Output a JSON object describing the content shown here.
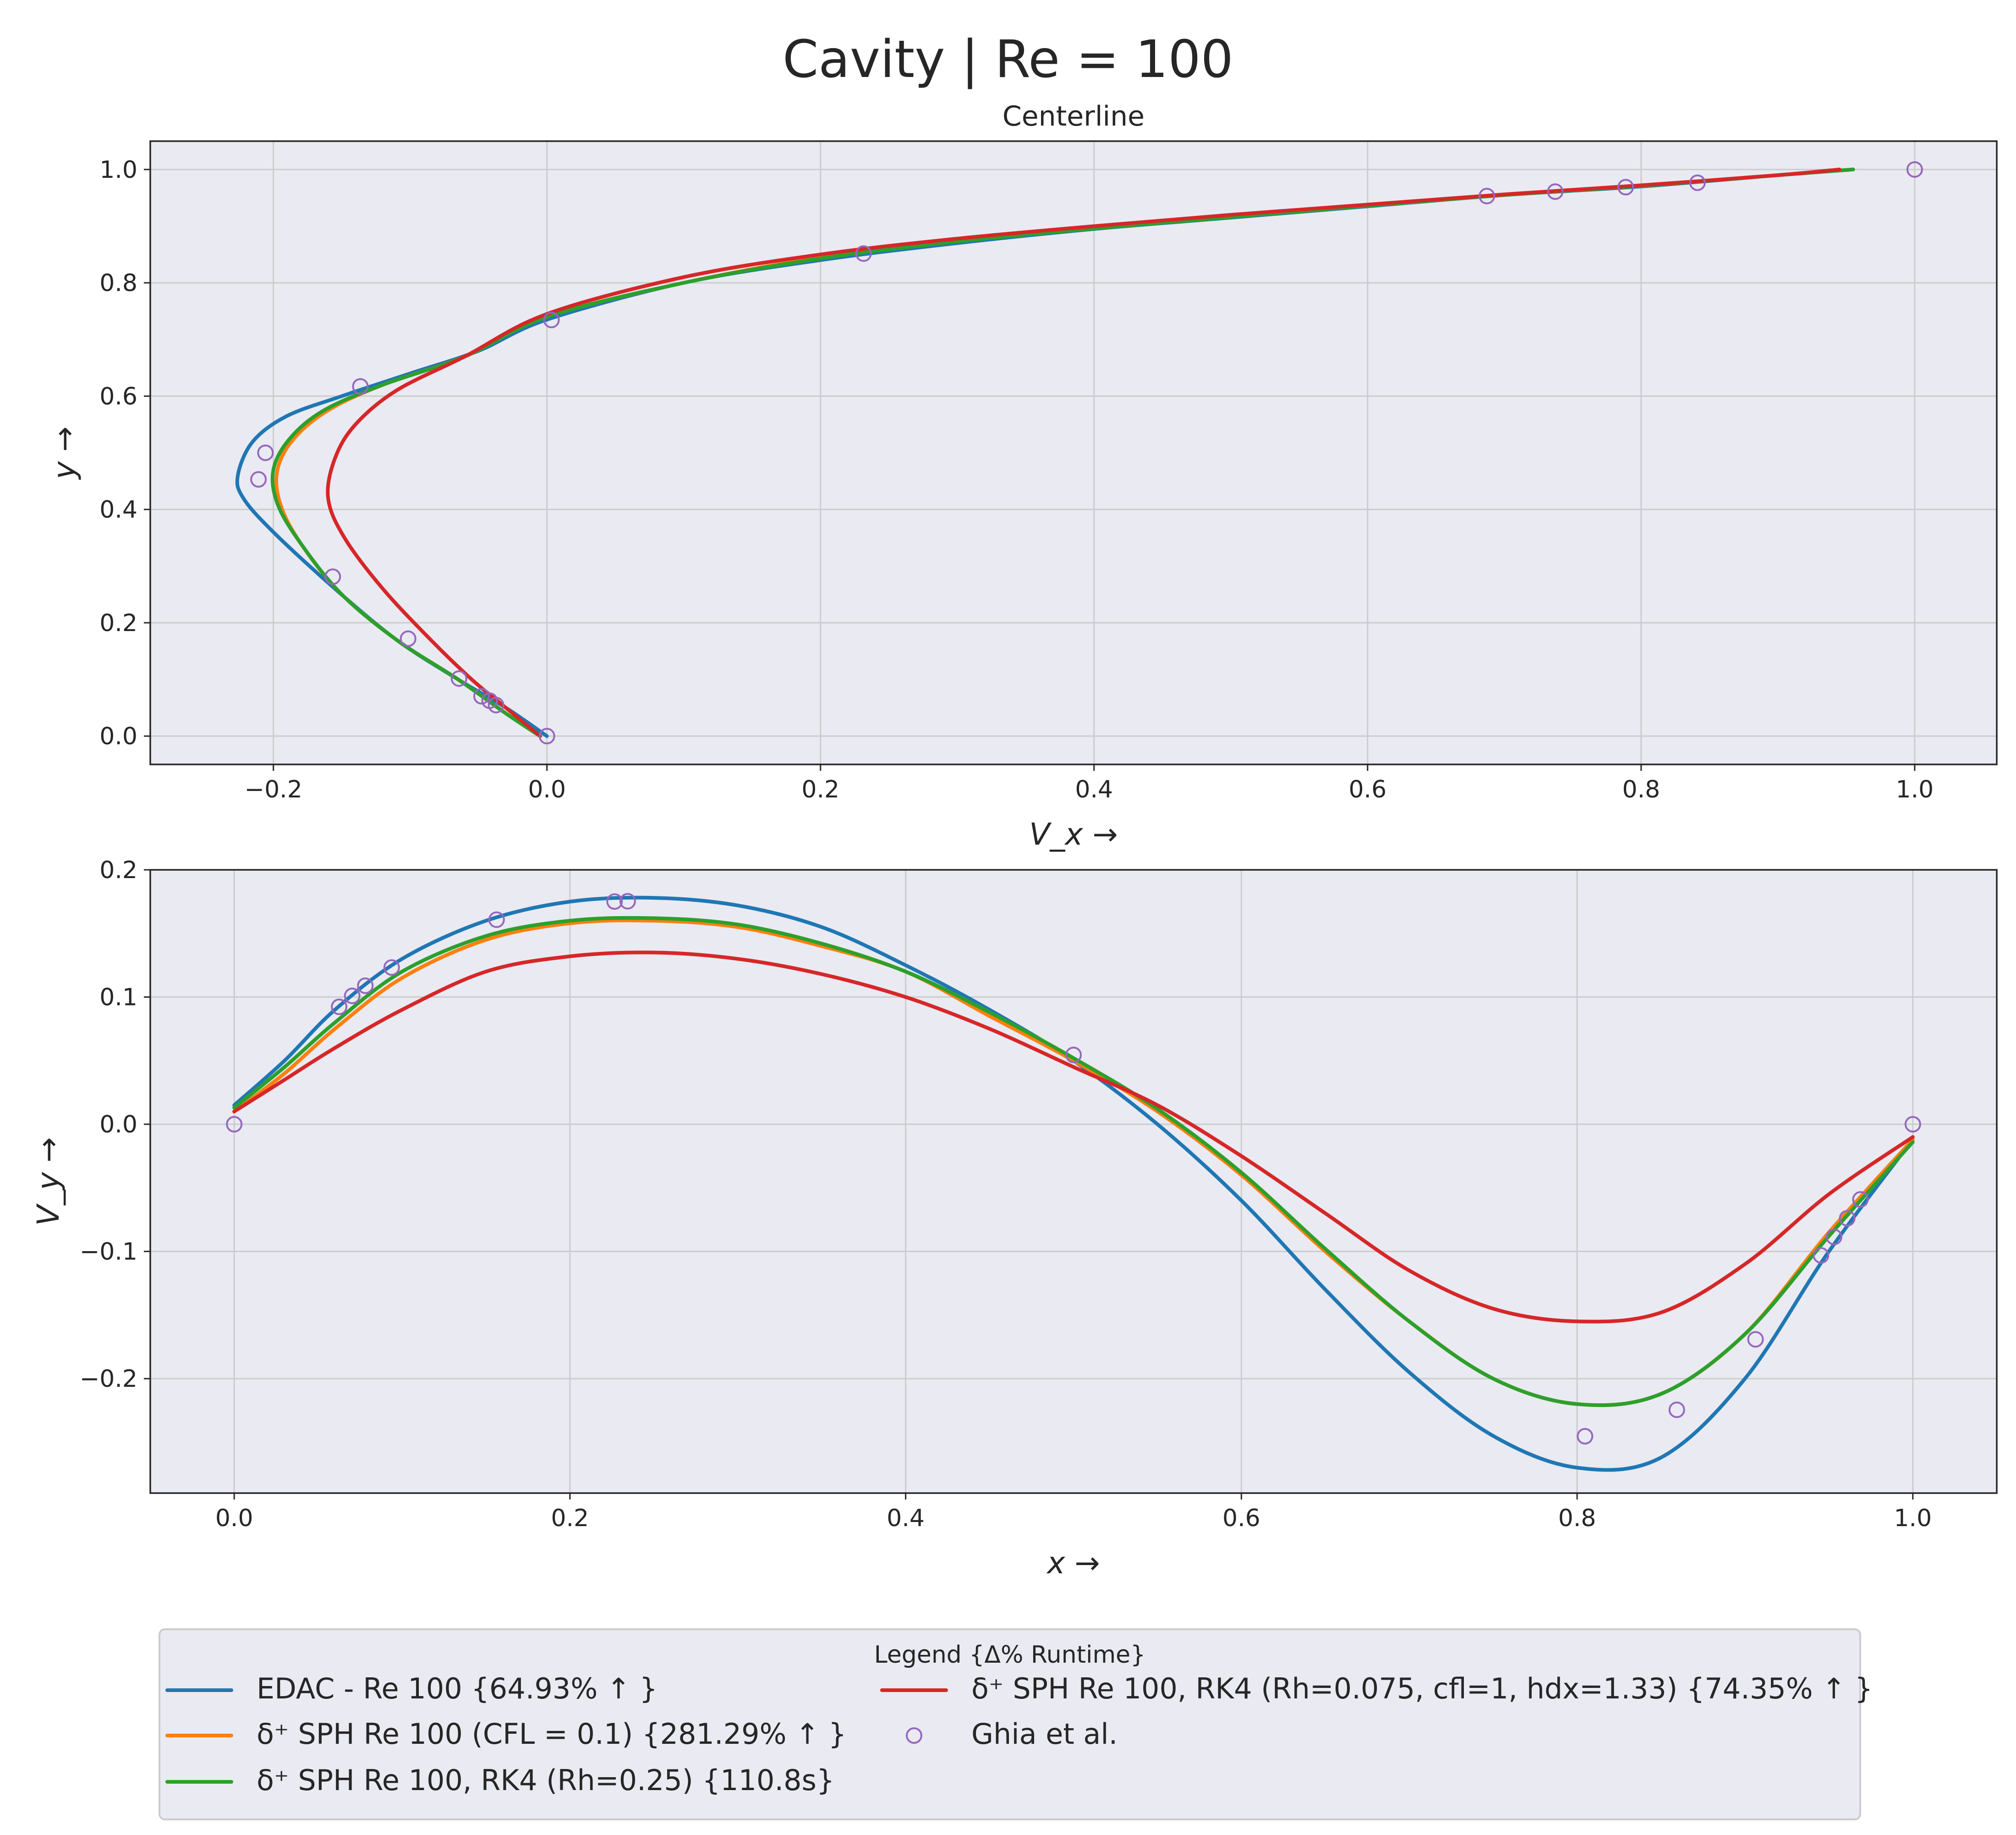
{
  "figure": {
    "title": "Cavity | Re = 100"
  },
  "legend": {
    "title": "Legend {Δ% Runtime}",
    "columns": 2,
    "placement": "bottom-center"
  },
  "colors": {
    "edac": "#1f77b4",
    "dsph_cfl": "#ff7f0e",
    "dsph_rk4": "#2ca02c",
    "dsph_rk4_rh": "#d62728",
    "ghia": "#9467bd",
    "axes_bg": "#eaeaf2",
    "grid": "#cccccc"
  },
  "chart_data": [
    {
      "type": "line",
      "title": "Centerline",
      "xlabel": "V_x →",
      "ylabel": "y →",
      "xlim": [
        -0.29,
        1.06
      ],
      "ylim": [
        -0.05,
        1.05
      ],
      "xticks": [
        -0.2,
        0.0,
        0.2,
        0.4,
        0.6,
        0.8,
        1.0
      ],
      "yticks": [
        0.0,
        0.2,
        0.4,
        0.6,
        0.8,
        1.0
      ],
      "xtick_labels": [
        "−0.2",
        "0.0",
        "0.2",
        "0.4",
        "0.6",
        "0.8",
        "1.0"
      ],
      "ytick_labels": [
        "0.0",
        "0.2",
        "0.4",
        "0.6",
        "0.8",
        "1.0"
      ],
      "grid": true,
      "series": [
        {
          "key": "edac",
          "points": [
            [
              0.0,
              0.0
            ],
            [
              -0.03,
              0.05
            ],
            [
              -0.065,
              0.1
            ],
            [
              -0.11,
              0.17
            ],
            [
              -0.155,
              0.26
            ],
            [
              -0.2,
              0.36
            ],
            [
              -0.222,
              0.42
            ],
            [
              -0.226,
              0.46
            ],
            [
              -0.215,
              0.52
            ],
            [
              -0.19,
              0.565
            ],
            [
              -0.15,
              0.6
            ],
            [
              -0.1,
              0.64
            ],
            [
              -0.05,
              0.68
            ],
            [
              0.0,
              0.735
            ],
            [
              0.1,
              0.8
            ],
            [
              0.2,
              0.84
            ],
            [
              0.3,
              0.87
            ],
            [
              0.4,
              0.895
            ],
            [
              0.5,
              0.915
            ],
            [
              0.6,
              0.935
            ],
            [
              0.7,
              0.955
            ],
            [
              0.8,
              0.97
            ],
            [
              0.9,
              0.99
            ],
            [
              0.955,
              1.0
            ]
          ]
        },
        {
          "key": "dsph_cfl",
          "points": [
            [
              -0.005,
              0.0
            ],
            [
              -0.03,
              0.04
            ],
            [
              -0.065,
              0.1
            ],
            [
              -0.11,
              0.17
            ],
            [
              -0.15,
              0.25
            ],
            [
              -0.18,
              0.34
            ],
            [
              -0.195,
              0.41
            ],
            [
              -0.197,
              0.47
            ],
            [
              -0.185,
              0.525
            ],
            [
              -0.16,
              0.575
            ],
            [
              -0.12,
              0.62
            ],
            [
              -0.06,
              0.67
            ],
            [
              0.0,
              0.74
            ],
            [
              0.1,
              0.8
            ],
            [
              0.2,
              0.845
            ],
            [
              0.3,
              0.875
            ],
            [
              0.4,
              0.898
            ],
            [
              0.5,
              0.918
            ],
            [
              0.6,
              0.938
            ],
            [
              0.7,
              0.956
            ],
            [
              0.8,
              0.972
            ],
            [
              0.9,
              0.99
            ],
            [
              0.945,
              1.0
            ]
          ]
        },
        {
          "key": "dsph_rk4",
          "points": [
            [
              -0.005,
              0.0
            ],
            [
              -0.03,
              0.04
            ],
            [
              -0.065,
              0.1
            ],
            [
              -0.11,
              0.17
            ],
            [
              -0.15,
              0.25
            ],
            [
              -0.18,
              0.34
            ],
            [
              -0.197,
              0.41
            ],
            [
              -0.2,
              0.47
            ],
            [
              -0.188,
              0.525
            ],
            [
              -0.163,
              0.575
            ],
            [
              -0.12,
              0.62
            ],
            [
              -0.06,
              0.67
            ],
            [
              0.0,
              0.74
            ],
            [
              0.1,
              0.8
            ],
            [
              0.2,
              0.843
            ],
            [
              0.3,
              0.873
            ],
            [
              0.4,
              0.896
            ],
            [
              0.5,
              0.916
            ],
            [
              0.6,
              0.936
            ],
            [
              0.7,
              0.955
            ],
            [
              0.8,
              0.971
            ],
            [
              0.9,
              0.99
            ],
            [
              0.955,
              1.0
            ]
          ]
        },
        {
          "key": "dsph_rk4_rh",
          "points": [
            [
              -0.005,
              0.0
            ],
            [
              -0.03,
              0.05
            ],
            [
              -0.055,
              0.1
            ],
            [
              -0.085,
              0.17
            ],
            [
              -0.12,
              0.26
            ],
            [
              -0.148,
              0.35
            ],
            [
              -0.16,
              0.42
            ],
            [
              -0.155,
              0.49
            ],
            [
              -0.14,
              0.55
            ],
            [
              -0.11,
              0.61
            ],
            [
              -0.06,
              0.67
            ],
            [
              0.0,
              0.745
            ],
            [
              0.1,
              0.81
            ],
            [
              0.2,
              0.85
            ],
            [
              0.3,
              0.878
            ],
            [
              0.4,
              0.9
            ],
            [
              0.5,
              0.92
            ],
            [
              0.6,
              0.938
            ],
            [
              0.7,
              0.956
            ],
            [
              0.8,
              0.972
            ],
            [
              0.9,
              0.99
            ],
            [
              0.945,
              1.0
            ]
          ]
        }
      ],
      "markers": {
        "key": "ghia",
        "points": [
          [
            0.0,
            0.0
          ],
          [
            -0.0372,
            0.0547
          ],
          [
            -0.0419,
            0.0625
          ],
          [
            -0.0478,
            0.0703
          ],
          [
            -0.0643,
            0.1016
          ],
          [
            -0.1015,
            0.1719
          ],
          [
            -0.1566,
            0.2813
          ],
          [
            -0.2109,
            0.4531
          ],
          [
            -0.2058,
            0.5
          ],
          [
            -0.1364,
            0.6172
          ],
          [
            0.0033,
            0.7344
          ],
          [
            0.2315,
            0.8516
          ],
          [
            0.6872,
            0.9531
          ],
          [
            0.7372,
            0.9609
          ],
          [
            0.7887,
            0.9688
          ],
          [
            0.8412,
            0.9766
          ],
          [
            1.0,
            1.0
          ]
        ]
      }
    },
    {
      "type": "line",
      "title": "",
      "xlabel": "x →",
      "ylabel": "V_y →",
      "xlim": [
        -0.05,
        1.05
      ],
      "ylim": [
        -0.29,
        0.2
      ],
      "xticks": [
        0.0,
        0.2,
        0.4,
        0.6,
        0.8,
        1.0
      ],
      "yticks": [
        -0.2,
        -0.1,
        0.0,
        0.1,
        0.2
      ],
      "xtick_labels": [
        "0.0",
        "0.2",
        "0.4",
        "0.6",
        "0.8",
        "1.0"
      ],
      "ytick_labels": [
        "−0.2",
        "−0.1",
        "0.0",
        "0.1",
        "0.2"
      ],
      "grid": true,
      "series": [
        {
          "key": "edac",
          "points": [
            [
              0.0,
              0.015
            ],
            [
              0.03,
              0.05
            ],
            [
              0.06,
              0.09
            ],
            [
              0.1,
              0.13
            ],
            [
              0.15,
              0.16
            ],
            [
              0.2,
              0.175
            ],
            [
              0.25,
              0.178
            ],
            [
              0.3,
              0.172
            ],
            [
              0.35,
              0.155
            ],
            [
              0.4,
              0.125
            ],
            [
              0.45,
              0.09
            ],
            [
              0.5,
              0.05
            ],
            [
              0.55,
              0.0
            ],
            [
              0.6,
              -0.06
            ],
            [
              0.65,
              -0.13
            ],
            [
              0.7,
              -0.195
            ],
            [
              0.75,
              -0.245
            ],
            [
              0.8,
              -0.27
            ],
            [
              0.85,
              -0.262
            ],
            [
              0.9,
              -0.2
            ],
            [
              0.95,
              -0.1
            ],
            [
              1.0,
              -0.012
            ]
          ]
        },
        {
          "key": "dsph_cfl",
          "points": [
            [
              0.0,
              0.01
            ],
            [
              0.03,
              0.04
            ],
            [
              0.06,
              0.075
            ],
            [
              0.1,
              0.115
            ],
            [
              0.15,
              0.145
            ],
            [
              0.2,
              0.158
            ],
            [
              0.25,
              0.16
            ],
            [
              0.3,
              0.155
            ],
            [
              0.35,
              0.14
            ],
            [
              0.4,
              0.12
            ],
            [
              0.45,
              0.085
            ],
            [
              0.5,
              0.05
            ],
            [
              0.55,
              0.01
            ],
            [
              0.6,
              -0.04
            ],
            [
              0.65,
              -0.1
            ],
            [
              0.7,
              -0.155
            ],
            [
              0.75,
              -0.2
            ],
            [
              0.8,
              -0.22
            ],
            [
              0.85,
              -0.212
            ],
            [
              0.9,
              -0.165
            ],
            [
              0.95,
              -0.085
            ],
            [
              1.0,
              -0.012
            ]
          ]
        },
        {
          "key": "dsph_rk4",
          "points": [
            [
              0.0,
              0.013
            ],
            [
              0.03,
              0.045
            ],
            [
              0.06,
              0.08
            ],
            [
              0.1,
              0.12
            ],
            [
              0.15,
              0.148
            ],
            [
              0.2,
              0.16
            ],
            [
              0.25,
              0.162
            ],
            [
              0.3,
              0.157
            ],
            [
              0.35,
              0.142
            ],
            [
              0.4,
              0.12
            ],
            [
              0.45,
              0.088
            ],
            [
              0.5,
              0.052
            ],
            [
              0.55,
              0.012
            ],
            [
              0.6,
              -0.038
            ],
            [
              0.65,
              -0.098
            ],
            [
              0.7,
              -0.155
            ],
            [
              0.75,
              -0.2
            ],
            [
              0.8,
              -0.22
            ],
            [
              0.85,
              -0.212
            ],
            [
              0.9,
              -0.165
            ],
            [
              0.95,
              -0.088
            ],
            [
              1.0,
              -0.014
            ]
          ]
        },
        {
          "key": "dsph_rk4_rh",
          "points": [
            [
              0.0,
              0.01
            ],
            [
              0.03,
              0.035
            ],
            [
              0.06,
              0.06
            ],
            [
              0.1,
              0.09
            ],
            [
              0.15,
              0.12
            ],
            [
              0.2,
              0.132
            ],
            [
              0.25,
              0.135
            ],
            [
              0.3,
              0.13
            ],
            [
              0.35,
              0.118
            ],
            [
              0.4,
              0.1
            ],
            [
              0.45,
              0.075
            ],
            [
              0.5,
              0.045
            ],
            [
              0.55,
              0.015
            ],
            [
              0.6,
              -0.025
            ],
            [
              0.65,
              -0.07
            ],
            [
              0.7,
              -0.115
            ],
            [
              0.75,
              -0.145
            ],
            [
              0.8,
              -0.155
            ],
            [
              0.85,
              -0.148
            ],
            [
              0.9,
              -0.11
            ],
            [
              0.95,
              -0.055
            ],
            [
              1.0,
              -0.01
            ]
          ]
        }
      ],
      "markers": {
        "key": "ghia",
        "points": [
          [
            0.0,
            0.0
          ],
          [
            0.0625,
            0.0923
          ],
          [
            0.0703,
            0.1009
          ],
          [
            0.0781,
            0.1089
          ],
          [
            0.0938,
            0.1232
          ],
          [
            0.1563,
            0.1608
          ],
          [
            0.2266,
            0.1751
          ],
          [
            0.2344,
            0.1753
          ],
          [
            0.5,
            0.0545
          ],
          [
            0.8047,
            -0.2453
          ],
          [
            0.8594,
            -0.2245
          ],
          [
            0.9063,
            -0.1691
          ],
          [
            0.9453,
            -0.1031
          ],
          [
            0.9531,
            -0.0886
          ],
          [
            0.9609,
            -0.0739
          ],
          [
            0.9688,
            -0.0591
          ],
          [
            1.0,
            0.0
          ]
        ]
      }
    }
  ],
  "legend_entries": [
    {
      "key": "edac",
      "kind": "line",
      "label": "EDAC - Re 100 {64.93% ↑ }"
    },
    {
      "key": "dsph_cfl",
      "kind": "line",
      "label": "δ⁺ SPH Re 100 (CFL = 0.1) {281.29% ↑ }"
    },
    {
      "key": "dsph_rk4",
      "kind": "line",
      "label": "δ⁺ SPH Re 100, RK4 (Rh=0.25) {110.8s}"
    },
    {
      "key": "dsph_rk4_rh",
      "kind": "line",
      "label": "δ⁺ SPH Re 100, RK4 (Rh=0.075, cfl=1, hdx=1.33) {74.35% ↑ }"
    },
    {
      "key": "ghia",
      "kind": "marker",
      "label": "Ghia et al."
    }
  ]
}
